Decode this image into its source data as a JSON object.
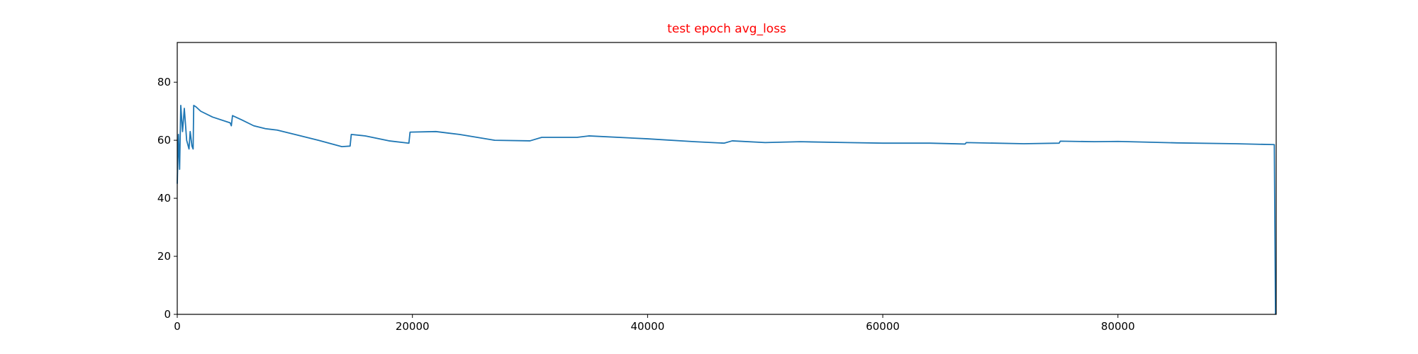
{
  "chart_data": {
    "type": "line",
    "title": "test epoch avg_loss",
    "title_color": "#ff0000",
    "x": [
      0,
      100,
      200,
      300,
      450,
      600,
      800,
      1000,
      1100,
      1250,
      1350,
      1400,
      1600,
      2000,
      3000,
      4500,
      4600,
      4700,
      5500,
      6500,
      7500,
      8500,
      10000,
      12000,
      14000,
      14700,
      14800,
      16000,
      18000,
      19700,
      19800,
      22000,
      24000,
      27000,
      30000,
      31000,
      34000,
      35000,
      40000,
      44000,
      46500,
      47200,
      50000,
      53000,
      57000,
      60000,
      64000,
      67000,
      67100,
      72000,
      75000,
      75100,
      78000,
      80000,
      85000,
      90000,
      93300,
      93400
    ],
    "series": [
      {
        "color": "#1f77b4",
        "values": [
          45,
          62,
          50,
          72,
          63,
          71,
          60,
          57,
          63,
          58,
          57,
          72,
          71.5,
          70,
          68,
          66,
          65,
          68.5,
          67,
          65,
          64,
          63.5,
          62,
          60,
          57.8,
          58,
          62,
          61.5,
          59.8,
          59,
          62.8,
          63,
          62,
          60,
          59.8,
          61,
          61,
          61.5,
          60.5,
          59.5,
          59,
          59.8,
          59.2,
          59.5,
          59.2,
          59,
          59,
          58.7,
          59.2,
          58.8,
          59,
          59.7,
          59.5,
          59.6,
          59.1,
          58.8,
          58.5,
          0
        ]
      }
    ],
    "xlim": [
      0,
      93460
    ],
    "ylim": [
      0,
      93.7
    ],
    "xticks": [
      0,
      20000,
      40000,
      60000,
      80000
    ],
    "yticks": [
      0,
      20,
      40,
      60,
      80
    ]
  }
}
